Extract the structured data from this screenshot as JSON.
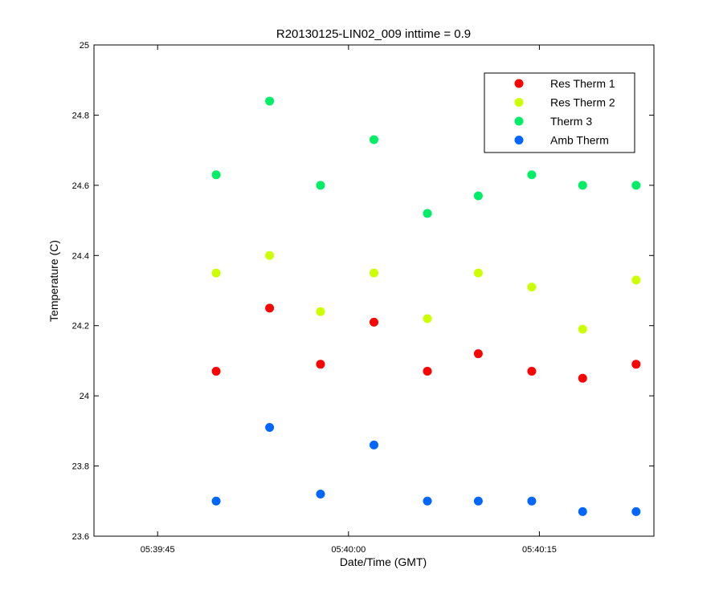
{
  "chart_data": {
    "type": "scatter",
    "title": "R20130125-LIN02_009 inttime = 0.9",
    "xlabel": "Date/Time (GMT)",
    "ylabel": "Temperature (C)",
    "x_unit": "time (HH:MM:SS GMT)",
    "xlim": [
      "05:39:40",
      "05:40:24"
    ],
    "ylim": [
      23.6,
      25.0
    ],
    "xticks": [
      "05:39:45",
      "05:40:00",
      "05:40:15"
    ],
    "yticks": [
      23.6,
      23.8,
      24,
      24.2,
      24.4,
      24.6,
      24.8,
      25
    ],
    "ytick_labels": [
      "23.6",
      "23.8",
      "24",
      "24.2",
      "24.4",
      "24.6",
      "24.8",
      "25"
    ],
    "grid": false,
    "legend": "top-right",
    "x": [
      "05:39:49.6",
      "05:39:53.8",
      "05:39:57.8",
      "05:40:02.0",
      "05:40:06.2",
      "05:40:10.2",
      "05:40:14.4",
      "05:40:18.4",
      "05:40:22.6"
    ],
    "series": [
      {
        "name": "Res Therm 1",
        "color": "#ff0000",
        "values": [
          24.07,
          24.25,
          24.09,
          24.21,
          24.07,
          24.12,
          24.07,
          24.05,
          24.09
        ]
      },
      {
        "name": "Res Therm 2",
        "color": "#ccff00",
        "values": [
          24.35,
          24.4,
          24.24,
          24.35,
          24.22,
          24.35,
          24.31,
          24.19,
          24.33
        ]
      },
      {
        "name": "Therm 3",
        "color": "#00ee66",
        "values": [
          24.63,
          24.84,
          24.6,
          24.73,
          24.52,
          24.57,
          24.63,
          24.6,
          24.6
        ]
      },
      {
        "name": "Amb Therm",
        "color": "#0066ff",
        "values": [
          23.7,
          23.91,
          23.72,
          23.86,
          23.7,
          23.7,
          23.7,
          23.67,
          23.67
        ]
      }
    ]
  }
}
